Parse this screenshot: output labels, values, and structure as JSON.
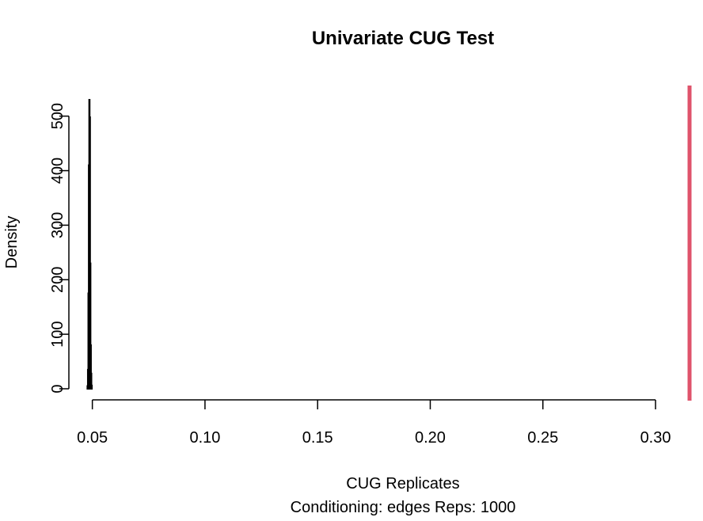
{
  "chart_data": {
    "type": "bar",
    "title": "Univariate CUG Test",
    "xlabel": "CUG Replicates",
    "sublabel": "Conditioning: edges Reps: 1000",
    "ylabel": "Density",
    "xlim": [
      0.0445,
      0.3151
    ],
    "ylim": [
      0,
      530
    ],
    "x_ticks": [
      0.05,
      0.1,
      0.15,
      0.2,
      0.25,
      0.3
    ],
    "x_tick_labels": [
      "0.05",
      "0.10",
      "0.15",
      "0.20",
      "0.25",
      "0.30"
    ],
    "y_ticks": [
      0,
      100,
      200,
      300,
      400,
      500
    ],
    "y_tick_labels": [
      "0",
      "100",
      "200",
      "300",
      "400",
      "500"
    ],
    "bin_width": 0.0002,
    "bins": [
      {
        "x": 0.0479,
        "density": 5
      },
      {
        "x": 0.0481,
        "density": 35
      },
      {
        "x": 0.0483,
        "density": 175
      },
      {
        "x": 0.0485,
        "density": 410
      },
      {
        "x": 0.0487,
        "density": 530
      },
      {
        "x": 0.0489,
        "density": 498
      },
      {
        "x": 0.0491,
        "density": 230
      },
      {
        "x": 0.0493,
        "density": 80
      },
      {
        "x": 0.0495,
        "density": 28
      },
      {
        "x": 0.0497,
        "density": 6
      }
    ],
    "observed_value": 0.3151,
    "observed_color": "#df536b",
    "bar_color": "#000000",
    "grid": false,
    "legend": false
  }
}
